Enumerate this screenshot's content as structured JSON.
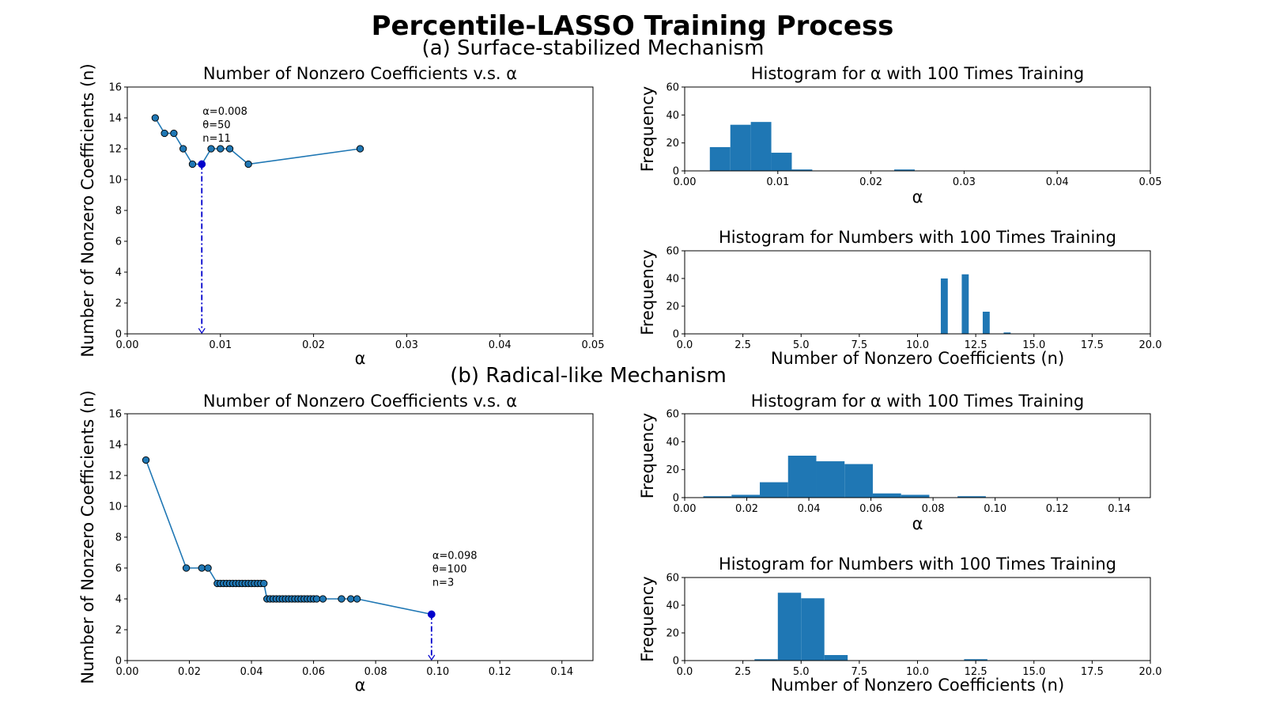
{
  "figure": {
    "title": "Percentile-LASSO Training Process",
    "section_a": "(a) Surface-stabilized Mechanism",
    "section_b": "(b) Radical-like Mechanism"
  },
  "colors": {
    "series": "#1f77b4",
    "highlight": "#0000cc"
  },
  "chart_data": [
    {
      "id": "a-line",
      "type": "line",
      "title": "Number of Nonzero Coefficients v.s. α",
      "xlabel": "α",
      "ylabel": "Number of Nonzero Coefficients (n)",
      "xlim": [
        0,
        0.05
      ],
      "ylim": [
        0,
        16
      ],
      "xticks": [
        0,
        0.01,
        0.02,
        0.03,
        0.04,
        0.05
      ],
      "xtick_labels": [
        "0.00",
        "0.01",
        "0.02",
        "0.03",
        "0.04",
        "0.05"
      ],
      "yticks": [
        0,
        2,
        4,
        6,
        8,
        10,
        12,
        14,
        16
      ],
      "ytick_labels": [
        "0",
        "2",
        "4",
        "6",
        "8",
        "10",
        "12",
        "14",
        "16"
      ],
      "x": [
        0.003,
        0.004,
        0.005,
        0.006,
        0.007,
        0.008,
        0.009,
        0.01,
        0.011,
        0.013,
        0.025
      ],
      "y": [
        14,
        13,
        13,
        12,
        11,
        11,
        12,
        12,
        12,
        11,
        12
      ],
      "highlight": {
        "x": 0.008,
        "y": 11
      },
      "annotation": [
        "α=0.008",
        "θ=50",
        "n=11"
      ],
      "annotation_at": {
        "x": 0.008,
        "y": 14.4
      }
    },
    {
      "id": "a-hist-alpha",
      "type": "bar",
      "title": "Histogram for α with 100 Times Training",
      "xlabel": "α",
      "ylabel": "Frequency",
      "xlim": [
        0,
        0.05
      ],
      "ylim": [
        0,
        60
      ],
      "xticks": [
        0,
        0.01,
        0.02,
        0.03,
        0.04,
        0.05
      ],
      "xtick_labels": [
        "0.00",
        "0.01",
        "0.02",
        "0.03",
        "0.04",
        "0.05"
      ],
      "yticks": [
        0,
        20,
        40,
        60
      ],
      "ytick_labels": [
        "0",
        "20",
        "40",
        "60"
      ],
      "bin_edges": [
        0.0027,
        0.0049,
        0.0071,
        0.0093,
        0.0115,
        0.0137
      ],
      "counts": [
        17,
        33,
        35,
        13,
        1
      ],
      "extra_bins": [
        {
          "from": 0.0225,
          "to": 0.0247,
          "count": 1
        }
      ]
    },
    {
      "id": "a-hist-n",
      "type": "bar",
      "title": "Histogram for Numbers with 100 Times Training",
      "xlabel": "Number of Nonzero Coefficients (n)",
      "ylabel": "Frequency",
      "xlim": [
        0,
        20
      ],
      "ylim": [
        0,
        60
      ],
      "xticks": [
        0,
        2.5,
        5,
        7.5,
        10,
        12.5,
        15,
        17.5,
        20
      ],
      "xtick_labels": [
        "0.0",
        "2.5",
        "5.0",
        "7.5",
        "10.0",
        "12.5",
        "15.0",
        "17.5",
        "20.0"
      ],
      "yticks": [
        0,
        20,
        40,
        60
      ],
      "ytick_labels": [
        "0",
        "20",
        "40",
        "60"
      ],
      "bars": [
        {
          "from": 11.0,
          "to": 11.3,
          "count": 40
        },
        {
          "from": 11.9,
          "to": 12.2,
          "count": 43
        },
        {
          "from": 12.8,
          "to": 13.1,
          "count": 16
        },
        {
          "from": 13.7,
          "to": 14.0,
          "count": 1
        }
      ]
    },
    {
      "id": "b-line",
      "type": "line",
      "title": "Number of Nonzero Coefficients v.s. α",
      "xlabel": "α",
      "ylabel": "Number of Nonzero Coefficients (n)",
      "xlim": [
        0,
        0.15
      ],
      "ylim": [
        0,
        16
      ],
      "xticks": [
        0,
        0.02,
        0.04,
        0.06,
        0.08,
        0.1,
        0.12,
        0.14
      ],
      "xtick_labels": [
        "0.00",
        "0.02",
        "0.04",
        "0.06",
        "0.08",
        "0.10",
        "0.12",
        "0.14"
      ],
      "yticks": [
        0,
        2,
        4,
        6,
        8,
        10,
        12,
        14,
        16
      ],
      "ytick_labels": [
        "0",
        "2",
        "4",
        "6",
        "8",
        "10",
        "12",
        "14",
        "16"
      ],
      "x": [
        0.006,
        0.019,
        0.024,
        0.026,
        0.029,
        0.03,
        0.031,
        0.032,
        0.033,
        0.034,
        0.035,
        0.036,
        0.037,
        0.038,
        0.039,
        0.04,
        0.041,
        0.042,
        0.043,
        0.044,
        0.045,
        0.046,
        0.047,
        0.048,
        0.049,
        0.05,
        0.051,
        0.052,
        0.053,
        0.054,
        0.055,
        0.056,
        0.057,
        0.058,
        0.059,
        0.06,
        0.061,
        0.063,
        0.069,
        0.072,
        0.074,
        0.098
      ],
      "y": [
        13,
        6,
        6,
        6,
        5,
        5,
        5,
        5,
        5,
        5,
        5,
        5,
        5,
        5,
        5,
        5,
        5,
        5,
        5,
        5,
        4,
        4,
        4,
        4,
        4,
        4,
        4,
        4,
        4,
        4,
        4,
        4,
        4,
        4,
        4,
        4,
        4,
        4,
        4,
        4,
        4,
        3
      ],
      "highlight": {
        "x": 0.098,
        "y": 3
      },
      "annotation": [
        "α=0.098",
        "θ=100",
        "n=3"
      ],
      "annotation_at": {
        "x": 0.098,
        "y": 6.8
      }
    },
    {
      "id": "b-hist-alpha",
      "type": "bar",
      "title": "Histogram for α with 100 Times Training",
      "xlabel": "α",
      "ylabel": "Frequency",
      "xlim": [
        0,
        0.15
      ],
      "ylim": [
        0,
        60
      ],
      "xticks": [
        0,
        0.02,
        0.04,
        0.06,
        0.08,
        0.1,
        0.12,
        0.14
      ],
      "xtick_labels": [
        "0.00",
        "0.02",
        "0.04",
        "0.06",
        "0.08",
        "0.10",
        "0.12",
        "0.14"
      ],
      "yticks": [
        0,
        20,
        40,
        60
      ],
      "ytick_labels": [
        "0",
        "20",
        "40",
        "60"
      ],
      "bin_edges": [
        0.006,
        0.0151,
        0.0242,
        0.0333,
        0.0424,
        0.0515,
        0.0606,
        0.0697,
        0.0788,
        0.0879,
        0.097
      ],
      "counts": [
        1,
        2,
        11,
        30,
        26,
        24,
        3,
        2,
        0,
        1
      ]
    },
    {
      "id": "b-hist-n",
      "type": "bar",
      "title": "Histogram for Numbers with 100 Times Training",
      "xlabel": "Number of Nonzero Coefficients (n)",
      "ylabel": "Frequency",
      "xlim": [
        0,
        20
      ],
      "ylim": [
        0,
        60
      ],
      "xticks": [
        0,
        2.5,
        5,
        7.5,
        10,
        12.5,
        15,
        17.5,
        20
      ],
      "xtick_labels": [
        "0.0",
        "2.5",
        "5.0",
        "7.5",
        "10.0",
        "12.5",
        "15.0",
        "17.5",
        "20.0"
      ],
      "yticks": [
        0,
        20,
        40,
        60
      ],
      "ytick_labels": [
        "0",
        "20",
        "40",
        "60"
      ],
      "bars": [
        {
          "from": 3.0,
          "to": 4.0,
          "count": 1
        },
        {
          "from": 4.0,
          "to": 5.0,
          "count": 49
        },
        {
          "from": 5.0,
          "to": 6.0,
          "count": 45
        },
        {
          "from": 6.0,
          "to": 7.0,
          "count": 4
        },
        {
          "from": 12.0,
          "to": 13.0,
          "count": 1
        }
      ]
    }
  ]
}
